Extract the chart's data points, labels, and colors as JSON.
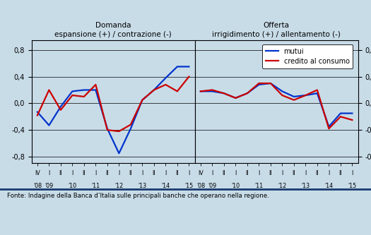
{
  "left_panel": {
    "title_line1": "Domanda",
    "title_line2": "espansione (+) / contrazione (-)",
    "xtick_roman": [
      "IV",
      "I",
      "II",
      "I",
      "II",
      "I",
      "II",
      "I",
      "II",
      "I",
      "II",
      "I",
      "II",
      "I"
    ],
    "xtick_years": [
      "'08",
      "'09",
      "",
      "'10",
      "",
      "'11",
      "",
      "'12",
      "",
      "'13",
      "",
      "'14",
      "",
      "'15"
    ],
    "blue_mutui": [
      -0.13,
      -0.33,
      -0.05,
      0.18,
      0.2,
      0.2,
      -0.38,
      -0.75,
      -0.38,
      0.05,
      0.2,
      0.38,
      0.55,
      0.55
    ],
    "red_credito": [
      -0.18,
      0.2,
      -0.1,
      0.12,
      0.1,
      0.28,
      -0.4,
      -0.42,
      -0.32,
      0.05,
      0.2,
      0.28,
      0.18,
      0.4
    ]
  },
  "right_panel": {
    "title_line1": "Offerta",
    "title_line2": "irrigidimento (+) / allentamento (-)",
    "xtick_roman": [
      "IV",
      "I",
      "II",
      "I",
      "II",
      "I",
      "II",
      "I",
      "II",
      "I",
      "II",
      "I",
      "II",
      "I"
    ],
    "xtick_years": [
      "'08",
      "'09",
      "",
      "'10",
      "",
      "'11",
      "",
      "'12",
      "",
      "'13",
      "",
      "'14",
      "",
      "'15"
    ],
    "blue_mutui": [
      0.18,
      0.18,
      0.15,
      0.08,
      0.15,
      0.28,
      0.3,
      0.18,
      0.1,
      0.12,
      0.15,
      -0.35,
      -0.15,
      -0.15
    ],
    "red_credito": [
      0.18,
      0.2,
      0.15,
      0.08,
      0.15,
      0.3,
      0.3,
      0.12,
      0.05,
      0.12,
      0.2,
      -0.38,
      -0.2,
      -0.25
    ]
  },
  "ylim": [
    -0.9,
    0.95
  ],
  "yticks": [
    -0.8,
    -0.4,
    0.0,
    0.4,
    0.8
  ],
  "ytick_labels": [
    "-0,8",
    "-0,4",
    "0,0",
    "0,4",
    "0,8"
  ],
  "blue_color": "#0033CC",
  "red_color": "#CC0000",
  "bg_color": "#C8DCE8",
  "plot_bg": "#C8DCE8",
  "legend_mutui": "mutui",
  "legend_credito": "credito al consumo",
  "fonte_text": "Fonte: Indagine della Banca d’Italia sulle principali banche che operano nella regione."
}
